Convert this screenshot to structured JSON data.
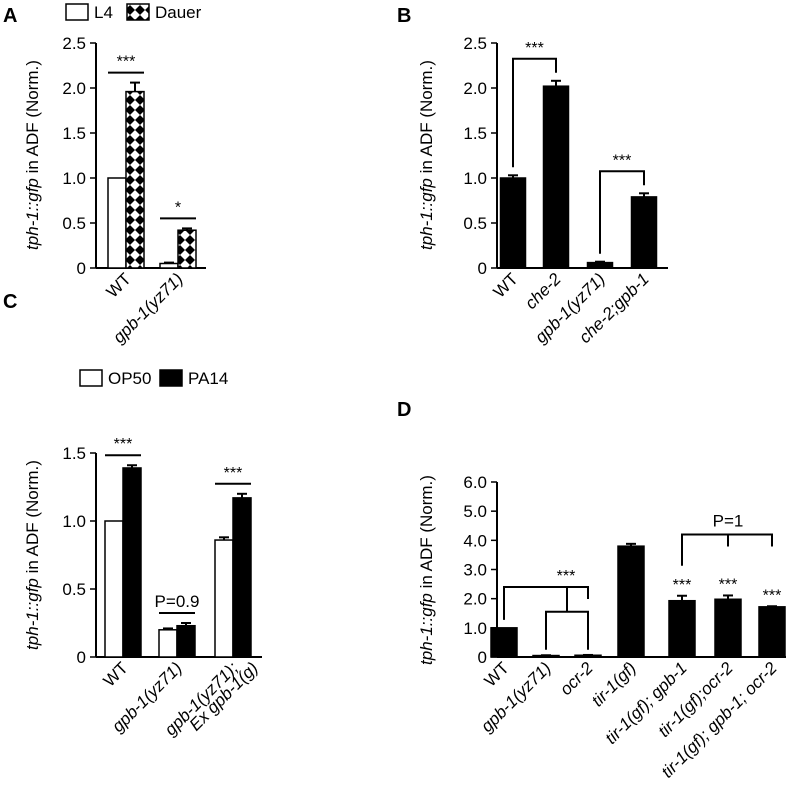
{
  "ylabel_italic": "tph-1::gfp",
  "ylabel_rest": " in ADF (Norm.)",
  "chart_data": [
    {
      "panel": "A",
      "type": "bar",
      "ylim": [
        0,
        2.5
      ],
      "yticks": [
        "0",
        "0.5",
        "1.0",
        "1.5",
        "2.0",
        "2.5"
      ],
      "categories": [
        "WT",
        "gpb-1(yz71)"
      ],
      "category_italic": [
        false,
        true
      ],
      "series": [
        {
          "name": "L4",
          "style": "white",
          "values": [
            1.0,
            0.05
          ],
          "errors": [
            0,
            0.01
          ]
        },
        {
          "name": "Dauer",
          "style": "diamond",
          "values": [
            1.96,
            0.42
          ],
          "errors": [
            0.1,
            0.02
          ]
        }
      ],
      "annotations": [
        {
          "text": "***",
          "group": 0
        },
        {
          "text": "*",
          "group": 1
        }
      ]
    },
    {
      "panel": "B",
      "type": "bar",
      "ylim": [
        0,
        2.5
      ],
      "yticks": [
        "0",
        "0.5",
        "1.0",
        "1.5",
        "2.0",
        "2.5"
      ],
      "categories": [
        "WT",
        "che-2",
        "gpb-1(yz71)",
        "che-2;gpb-1"
      ],
      "category_italic": [
        false,
        true,
        true,
        true
      ],
      "series": [
        {
          "name": "",
          "style": "black",
          "values": [
            1.0,
            2.02,
            0.06,
            0.79
          ],
          "errors": [
            0.03,
            0.06,
            0.01,
            0.04
          ]
        }
      ],
      "brackets": [
        {
          "from": 0,
          "to": 1,
          "text": "***"
        },
        {
          "from": 2,
          "to": 3,
          "text": "***"
        }
      ]
    },
    {
      "panel": "C",
      "type": "bar",
      "ylim": [
        0,
        1.5
      ],
      "yticks": [
        "0",
        "0.5",
        "1.0",
        "1.5"
      ],
      "categories": [
        "WT",
        "gpb-1(yz71)",
        "gpb-1(yz71);|Ex gpb-1(g)"
      ],
      "category_italic": [
        false,
        true,
        true
      ],
      "series": [
        {
          "name": "OP50",
          "style": "white",
          "values": [
            1.0,
            0.2,
            0.86
          ],
          "errors": [
            0,
            0.01,
            0.02
          ]
        },
        {
          "name": "PA14",
          "style": "black",
          "values": [
            1.39,
            0.23,
            1.17
          ],
          "errors": [
            0.02,
            0.02,
            0.03
          ]
        }
      ],
      "annotations": [
        {
          "text": "***",
          "group": 0
        },
        {
          "text": "P=0.9",
          "group": 1
        },
        {
          "text": "***",
          "group": 2
        }
      ]
    },
    {
      "panel": "D",
      "type": "bar",
      "ylim": [
        0,
        6.0
      ],
      "yticks": [
        "0",
        "1.0",
        "2.0",
        "3.0",
        "4.0",
        "5.0",
        "6.0"
      ],
      "categories": [
        "WT",
        "gpb-1(yz71)",
        "ocr-2",
        "tir-1(gf)",
        "tir-1(gf); gpb-1",
        "tir-1(gf);ocr-2",
        "tir-1(gf); gpb-1; ocr-2"
      ],
      "category_italic": [
        false,
        true,
        true,
        true,
        true,
        true,
        true
      ],
      "series": [
        {
          "name": "",
          "style": "black",
          "values": [
            1.0,
            0.05,
            0.06,
            3.8,
            1.93,
            1.98,
            1.72
          ],
          "errors": [
            0,
            0.01,
            0.01,
            0.08,
            0.17,
            0.13,
            0.02
          ]
        }
      ],
      "bracket_groups": [
        {
          "left": 0,
          "rights": [
            1,
            2
          ],
          "text": "***"
        },
        {
          "left": 4,
          "rights": [
            5,
            6
          ],
          "text": "P=1"
        }
      ],
      "bar_labels": [
        {
          "index": 4,
          "text": "***"
        },
        {
          "index": 5,
          "text": "***"
        },
        {
          "index": 6,
          "text": "***"
        }
      ]
    }
  ]
}
